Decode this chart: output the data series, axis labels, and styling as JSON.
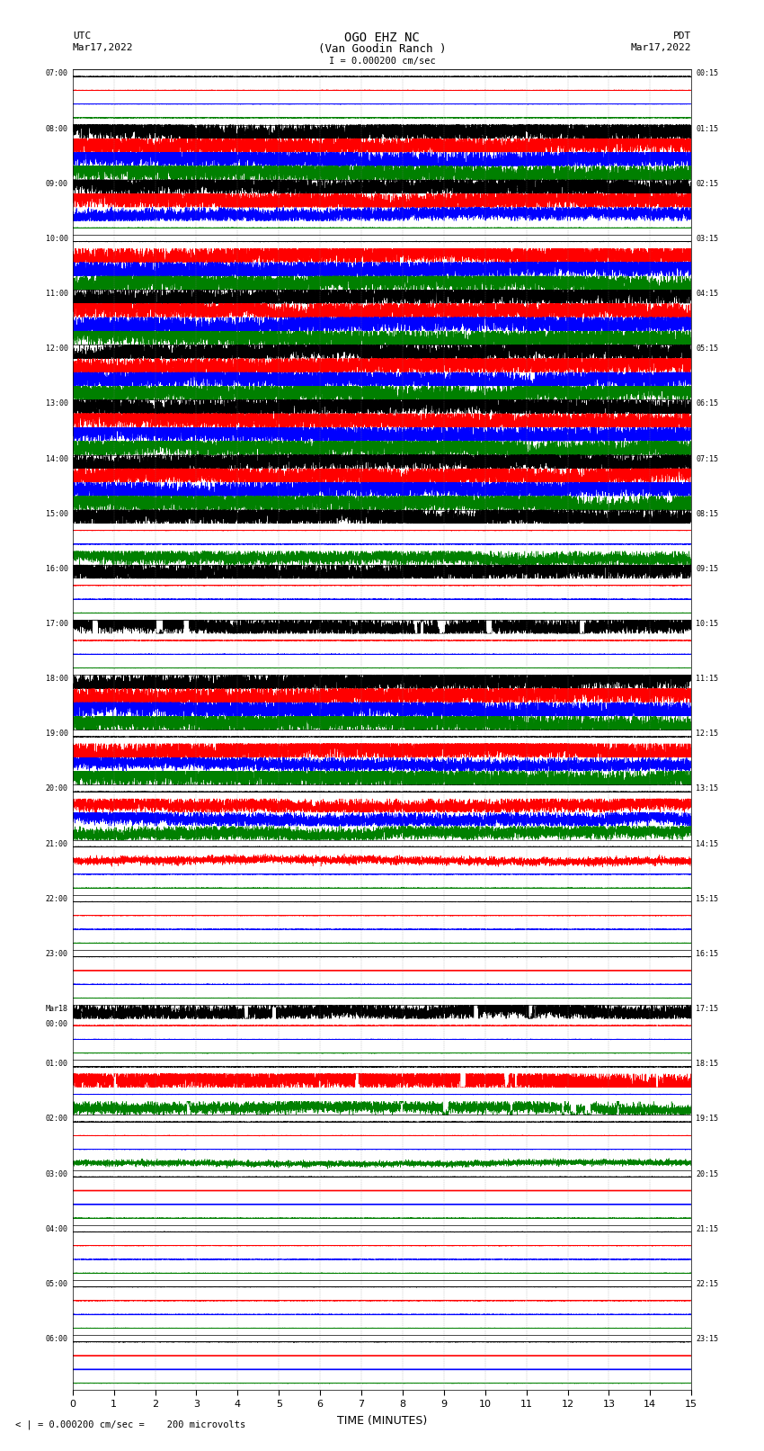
{
  "title_line1": "OGO EHZ NC",
  "title_line2": "(Van Goodin Ranch )",
  "scale_text": "I = 0.000200 cm/sec",
  "utc_label": "UTC",
  "utc_date": "Mar17,2022",
  "pdt_label": "PDT",
  "pdt_date": "Mar17,2022",
  "footer_text": "< | = 0.000200 cm/sec =    200 microvolts",
  "xlabel": "TIME (MINUTES)",
  "xlim": [
    0,
    15
  ],
  "xticks": [
    0,
    1,
    2,
    3,
    4,
    5,
    6,
    7,
    8,
    9,
    10,
    11,
    12,
    13,
    14,
    15
  ],
  "figsize": [
    8.5,
    16.13
  ],
  "dpi": 100,
  "bg_color": "#ffffff",
  "utc_times": [
    "07:00",
    "08:00",
    "09:00",
    "10:00",
    "11:00",
    "12:00",
    "13:00",
    "14:00",
    "15:00",
    "16:00",
    "17:00",
    "18:00",
    "19:00",
    "20:00",
    "21:00",
    "22:00",
    "23:00",
    "Mar18\n00:00",
    "01:00",
    "02:00",
    "03:00",
    "04:00",
    "05:00",
    "06:00"
  ],
  "pdt_times": [
    "00:15",
    "01:15",
    "02:15",
    "03:15",
    "04:15",
    "05:15",
    "06:15",
    "07:15",
    "08:15",
    "09:15",
    "10:15",
    "11:15",
    "12:15",
    "13:15",
    "14:15",
    "15:15",
    "16:15",
    "17:15",
    "18:15",
    "19:15",
    "20:15",
    "21:15",
    "22:15",
    "23:15"
  ],
  "row_configs": [
    {
      "label": "07:00",
      "traces": [
        {
          "color": "black",
          "amp": 0.02,
          "flat": true
        },
        {
          "color": "red",
          "amp": 0.02,
          "flat": true
        },
        {
          "color": "blue",
          "amp": 0.02,
          "flat": true
        },
        {
          "color": "green",
          "amp": 0.03,
          "flat": true
        }
      ]
    },
    {
      "label": "08:00",
      "traces": [
        {
          "color": "black",
          "amp": 0.4,
          "flat": false
        },
        {
          "color": "red",
          "amp": 0.7,
          "flat": false
        },
        {
          "color": "blue",
          "amp": 0.6,
          "flat": false
        },
        {
          "color": "green",
          "amp": 0.5,
          "flat": false
        }
      ]
    },
    {
      "label": "09:00",
      "traces": [
        {
          "color": "black",
          "amp": 0.6,
          "flat": false
        },
        {
          "color": "red",
          "amp": 0.5,
          "flat": false
        },
        {
          "color": "blue",
          "amp": 0.15,
          "flat": false
        },
        {
          "color": "green",
          "amp": 0.04,
          "flat": true
        }
      ]
    },
    {
      "label": "10:00",
      "traces": [
        {
          "color": "black",
          "amp": 0.03,
          "flat": true
        },
        {
          "color": "red",
          "amp": 0.5,
          "flat": false
        },
        {
          "color": "blue",
          "amp": 0.6,
          "flat": false
        },
        {
          "color": "green",
          "amp": 0.6,
          "flat": false
        }
      ]
    },
    {
      "label": "11:00",
      "traces": [
        {
          "color": "black",
          "amp": 0.6,
          "flat": false
        },
        {
          "color": "red",
          "amp": 0.6,
          "flat": false
        },
        {
          "color": "blue",
          "amp": 0.6,
          "flat": false
        },
        {
          "color": "green",
          "amp": 0.6,
          "flat": false
        }
      ]
    },
    {
      "label": "12:00",
      "traces": [
        {
          "color": "black",
          "amp": 0.6,
          "flat": false
        },
        {
          "color": "red",
          "amp": 0.6,
          "flat": false
        },
        {
          "color": "blue",
          "amp": 0.6,
          "flat": false
        },
        {
          "color": "green",
          "amp": 0.6,
          "flat": false
        }
      ]
    },
    {
      "label": "13:00",
      "traces": [
        {
          "color": "black",
          "amp": 0.6,
          "flat": false
        },
        {
          "color": "red",
          "amp": 0.6,
          "flat": false
        },
        {
          "color": "blue",
          "amp": 0.5,
          "flat": false
        },
        {
          "color": "green",
          "amp": 0.5,
          "flat": false
        }
      ]
    },
    {
      "label": "14:00",
      "traces": [
        {
          "color": "black",
          "amp": 0.6,
          "flat": false
        },
        {
          "color": "red",
          "amp": 0.6,
          "flat": false
        },
        {
          "color": "blue",
          "amp": 0.6,
          "flat": false
        },
        {
          "color": "green",
          "amp": 0.5,
          "flat": false
        }
      ]
    },
    {
      "label": "15:00",
      "traces": [
        {
          "color": "black",
          "amp": 0.3,
          "flat": false
        },
        {
          "color": "red",
          "amp": 0.04,
          "flat": true
        },
        {
          "color": "blue",
          "amp": 0.04,
          "flat": true
        },
        {
          "color": "green",
          "amp": 0.15,
          "flat": false
        }
      ]
    },
    {
      "label": "16:00",
      "traces": [
        {
          "color": "black",
          "amp": 0.4,
          "flat": false
        },
        {
          "color": "red",
          "amp": 0.04,
          "flat": true
        },
        {
          "color": "blue",
          "amp": 0.04,
          "flat": true
        },
        {
          "color": "green",
          "amp": 0.04,
          "flat": true
        }
      ]
    },
    {
      "label": "17:00",
      "traces": [
        {
          "color": "black",
          "amp": 0.3,
          "flat": false,
          "spiky": true
        },
        {
          "color": "red",
          "amp": 0.04,
          "flat": true
        },
        {
          "color": "blue",
          "amp": 0.04,
          "flat": true
        },
        {
          "color": "green",
          "amp": 0.04,
          "flat": true
        }
      ]
    },
    {
      "label": "18:00",
      "traces": [
        {
          "color": "black",
          "amp": 0.6,
          "flat": false
        },
        {
          "color": "red",
          "amp": 0.5,
          "flat": false
        },
        {
          "color": "blue",
          "amp": 0.5,
          "flat": false
        },
        {
          "color": "green",
          "amp": 0.5,
          "flat": false
        }
      ]
    },
    {
      "label": "19:00",
      "traces": [
        {
          "color": "black",
          "amp": 0.04,
          "flat": true
        },
        {
          "color": "red",
          "amp": 0.4,
          "flat": false
        },
        {
          "color": "blue",
          "amp": 0.15,
          "flat": false
        },
        {
          "color": "green",
          "amp": 0.3,
          "flat": false
        }
      ]
    },
    {
      "label": "20:00",
      "traces": [
        {
          "color": "black",
          "amp": 0.04,
          "flat": true
        },
        {
          "color": "red",
          "amp": 0.15,
          "flat": false
        },
        {
          "color": "blue",
          "amp": 0.15,
          "flat": false
        },
        {
          "color": "green",
          "amp": 0.15,
          "flat": false
        }
      ]
    },
    {
      "label": "21:00",
      "traces": [
        {
          "color": "black",
          "amp": 0.04,
          "flat": true
        },
        {
          "color": "red",
          "amp": 0.08,
          "flat": false
        },
        {
          "color": "blue",
          "amp": 0.04,
          "flat": true
        },
        {
          "color": "green",
          "amp": 0.04,
          "flat": true
        }
      ]
    },
    {
      "label": "22:00",
      "traces": [
        {
          "color": "black",
          "amp": 0.02,
          "flat": true
        },
        {
          "color": "red",
          "amp": 0.04,
          "flat": true
        },
        {
          "color": "blue",
          "amp": 0.03,
          "flat": true
        },
        {
          "color": "green",
          "amp": 0.02,
          "flat": true
        }
      ]
    },
    {
      "label": "23:00",
      "traces": [
        {
          "color": "black",
          "amp": 0.02,
          "flat": true
        },
        {
          "color": "red",
          "amp": 0.5,
          "flat": false,
          "solid": true
        },
        {
          "color": "blue",
          "amp": 0.04,
          "flat": true
        },
        {
          "color": "green",
          "amp": 0.02,
          "flat": true
        }
      ]
    },
    {
      "label": "Mar18\n00:00",
      "traces": [
        {
          "color": "black",
          "amp": 0.2,
          "flat": false,
          "spiky": true
        },
        {
          "color": "red",
          "amp": 0.04,
          "flat": true
        },
        {
          "color": "blue",
          "amp": 0.04,
          "flat": true
        },
        {
          "color": "green",
          "amp": 0.04,
          "flat": true
        }
      ]
    },
    {
      "label": "01:00",
      "traces": [
        {
          "color": "black",
          "amp": 0.04,
          "flat": true
        },
        {
          "color": "red",
          "amp": 0.3,
          "flat": false,
          "spiky": true
        },
        {
          "color": "blue",
          "amp": 0.04,
          "flat": true
        },
        {
          "color": "green",
          "amp": 0.15,
          "flat": false,
          "spiky": true
        }
      ]
    },
    {
      "label": "02:00",
      "traces": [
        {
          "color": "black",
          "amp": 0.02,
          "flat": true
        },
        {
          "color": "red",
          "amp": 0.02,
          "flat": true
        },
        {
          "color": "blue",
          "amp": 0.02,
          "flat": true
        },
        {
          "color": "green",
          "amp": 0.06,
          "flat": false
        }
      ]
    },
    {
      "label": "03:00",
      "traces": [
        {
          "color": "black",
          "amp": 0.02,
          "flat": true
        },
        {
          "color": "red",
          "amp": 0.5,
          "flat": false,
          "solid": true
        },
        {
          "color": "blue",
          "amp": 0.5,
          "flat": false,
          "solid": true
        },
        {
          "color": "green",
          "amp": 0.02,
          "flat": true
        }
      ]
    },
    {
      "label": "04:00",
      "traces": [
        {
          "color": "black",
          "amp": 0.02,
          "flat": true
        },
        {
          "color": "red",
          "amp": 0.02,
          "flat": true
        },
        {
          "color": "blue",
          "amp": 0.02,
          "flat": true
        },
        {
          "color": "green",
          "amp": 0.02,
          "flat": true
        }
      ]
    },
    {
      "label": "05:00",
      "traces": [
        {
          "color": "black",
          "amp": 0.02,
          "flat": true
        },
        {
          "color": "red",
          "amp": 0.02,
          "flat": true
        },
        {
          "color": "blue",
          "amp": 0.02,
          "flat": true
        },
        {
          "color": "green",
          "amp": 0.02,
          "flat": true
        }
      ]
    },
    {
      "label": "06:00",
      "traces": [
        {
          "color": "black",
          "amp": 0.02,
          "flat": true
        },
        {
          "color": "red",
          "amp": 0.5,
          "flat": false,
          "solid": true
        },
        {
          "color": "blue",
          "amp": 0.5,
          "flat": false,
          "solid": true
        },
        {
          "color": "green",
          "amp": 0.02,
          "flat": true
        }
      ]
    }
  ]
}
